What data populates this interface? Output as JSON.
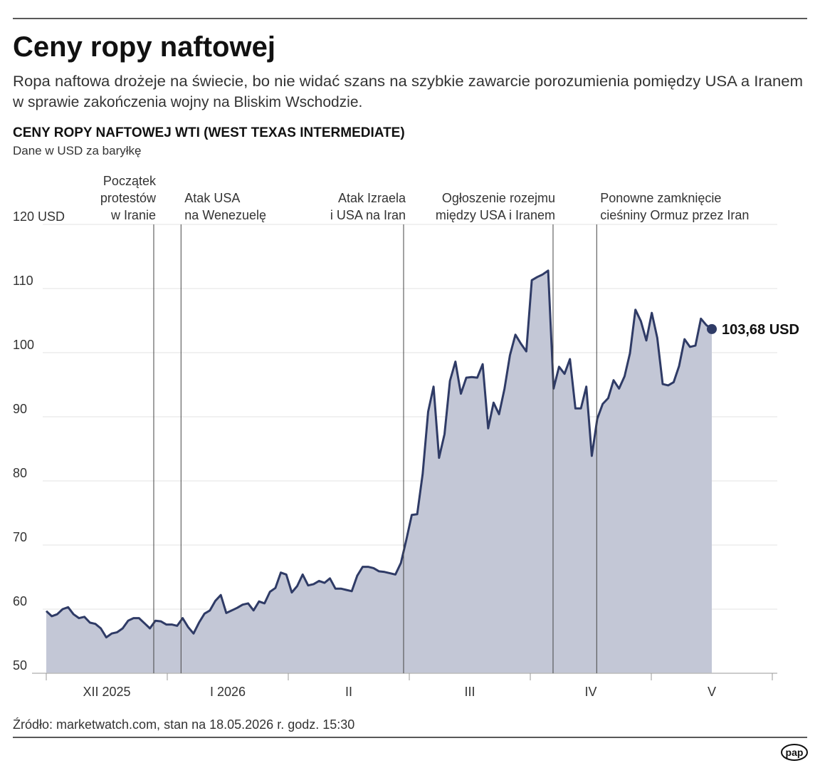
{
  "chart_data": {
    "type": "area",
    "title": "Ceny ropy naftowej",
    "subtitle": [
      "Ropa naftowa drożeje na świecie, bo nie widać szans na szybkie zawarcie porozumienia pomiędzy USA a Iranem",
      "w sprawie zakończenia wojny na Bliskim Wschodzie."
    ],
    "chart_title": "CENY ROPY NAFTOWEJ WTI (WEST TEXAS INTERMEDIATE)",
    "unit_note": "Dane w USD za baryłkę",
    "source": "Źródło: marketwatch.com, stan na 18.05.2026 r. godz. 15:30",
    "logo": "pap",
    "line_color": "#2f3b66",
    "fill_color": "#c3c7d6",
    "months": [
      "XII 2025",
      "I 2026",
      "II",
      "III",
      "IV",
      "V"
    ],
    "ylim": [
      50,
      120
    ],
    "yticks": [
      50,
      60,
      70,
      80,
      90,
      100,
      110,
      {
        "value": 120,
        "label": "120 USD"
      }
    ],
    "grid": true,
    "values": [
      59.7,
      58.9,
      59.2,
      60.0,
      60.3,
      59.2,
      58.6,
      58.8,
      57.9,
      57.7,
      57.0,
      55.6,
      56.2,
      56.4,
      57.0,
      58.2,
      58.6,
      58.6,
      57.8,
      57.0,
      58.2,
      58.1,
      57.6,
      57.6,
      57.4,
      58.6,
      57.2,
      56.2,
      57.9,
      59.3,
      59.8,
      61.3,
      62.2,
      59.4,
      59.8,
      60.2,
      60.7,
      60.9,
      59.8,
      61.2,
      60.9,
      62.7,
      63.3,
      65.7,
      65.4,
      62.6,
      63.6,
      65.4,
      63.7,
      63.9,
      64.4,
      64.1,
      64.8,
      63.2,
      63.2,
      63.0,
      62.8,
      65.2,
      66.6,
      66.6,
      66.4,
      65.9,
      65.8,
      65.6,
      65.4,
      67.2,
      70.8,
      74.7,
      74.8,
      81.1,
      90.8,
      94.7,
      83.6,
      87.3,
      95.6,
      98.6,
      93.6,
      96.1,
      96.2,
      96.1,
      98.2,
      88.2,
      92.2,
      90.4,
      94.4,
      99.6,
      102.8,
      101.4,
      100.2,
      111.3,
      111.8,
      112.2,
      112.8,
      94.4,
      97.8,
      96.7,
      99.0,
      91.3,
      91.3,
      94.7,
      83.9,
      89.7,
      92.0,
      92.9,
      95.7,
      94.4,
      96.3,
      99.9,
      106.7,
      104.9,
      101.9,
      106.2,
      102.3,
      95.1,
      94.9,
      95.4,
      97.9,
      102.1,
      100.9,
      101.1,
      105.3,
      104.3,
      103.68
    ],
    "last_label": "103,68 USD",
    "annotations": [
      {
        "at": 19.7,
        "align": "end",
        "lines": [
          "Początek",
          "protestów",
          "w Iranie"
        ]
      },
      {
        "at": 24.7,
        "align": "start",
        "lines": [
          "Atak USA",
          "na Wenezuelę"
        ]
      },
      {
        "at": 65.5,
        "align": "end",
        "lines": [
          "Atak Izraela",
          "i USA na Iran"
        ]
      },
      {
        "at": 92.9,
        "align": "end",
        "lines": [
          "Ogłoszenie rozejmu",
          "między USA i Iranem"
        ]
      },
      {
        "at": 100.9,
        "align": "start",
        "lines": [
          "Ponowne zamknięcie",
          "cieśniny Ormuz przez Iran"
        ]
      }
    ]
  }
}
